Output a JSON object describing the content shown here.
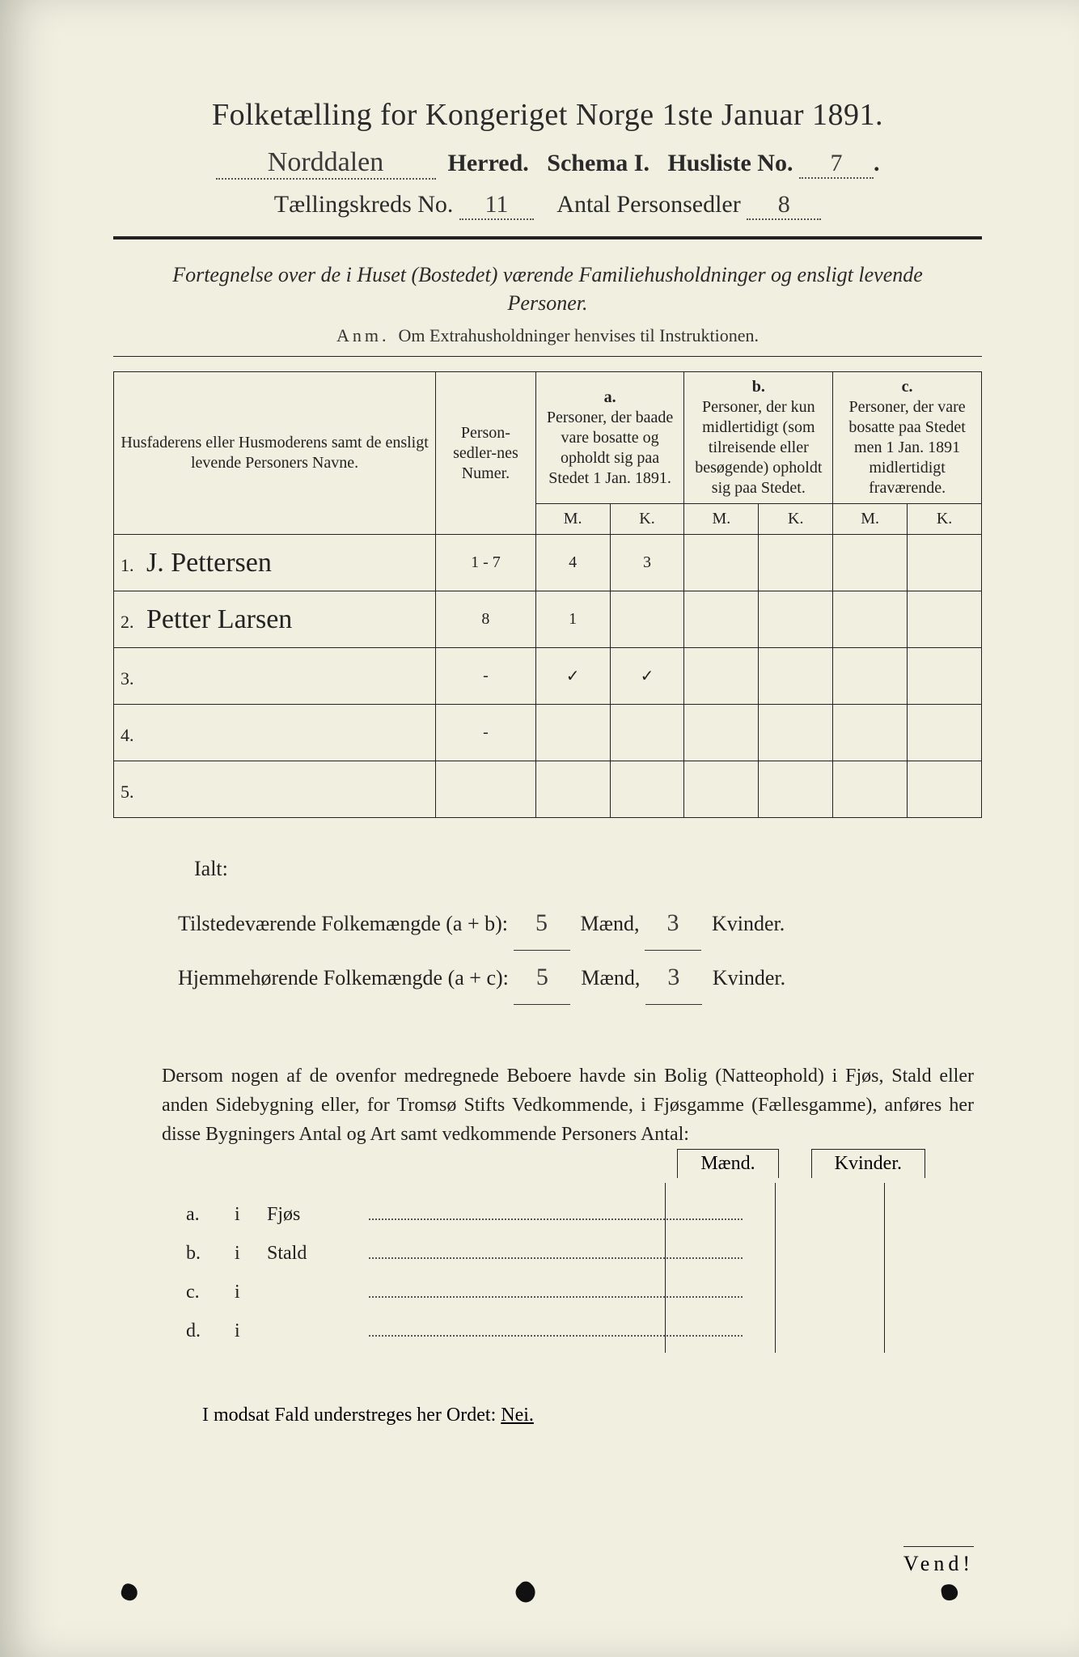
{
  "header": {
    "title": "Folketælling for Kongeriget Norge 1ste Januar 1891.",
    "herred_value": "Norddalen",
    "herred_label": "Herred.",
    "schema_label": "Schema I.",
    "husliste_label": "Husliste No.",
    "husliste_value": "7",
    "kreds_label": "Tællingskreds No.",
    "kreds_value": "11",
    "antal_label": "Antal Personsedler",
    "antal_value": "8"
  },
  "intro": {
    "line": "Fortegnelse over de i Huset (Bostedet) værende Familiehusholdninger og ensligt levende Personer.",
    "anm_label": "Anm.",
    "anm_text": "Om Extrahusholdninger henvises til Instruktionen."
  },
  "table": {
    "col_name": "Husfaderens eller Husmoderens samt de ensligt levende Personers Navne.",
    "col_num": "Person-sedler-nes Numer.",
    "col_a_label": "a.",
    "col_a": "Personer, der baade vare bosatte og opholdt sig paa Stedet 1 Jan. 1891.",
    "col_b_label": "b.",
    "col_b": "Personer, der kun midlertidigt (som tilreisende eller besøgende) opholdt sig paa Stedet.",
    "col_c_label": "c.",
    "col_c": "Personer, der vare bosatte paa Stedet men 1 Jan. 1891 midlertidigt fraværende.",
    "M": "M.",
    "K": "K.",
    "rows": [
      {
        "n": "1.",
        "name": "J. Pettersen",
        "num": "1 - 7",
        "aM": "4",
        "aK": "3",
        "bM": "",
        "bK": "",
        "cM": "",
        "cK": ""
      },
      {
        "n": "2.",
        "name": "Petter Larsen",
        "num": "8",
        "aM": "1",
        "aK": "",
        "bM": "",
        "bK": "",
        "cM": "",
        "cK": ""
      },
      {
        "n": "3.",
        "name": "",
        "num": "-",
        "aM": "✓",
        "aK": "✓",
        "bM": "",
        "bK": "",
        "cM": "",
        "cK": ""
      },
      {
        "n": "4.",
        "name": "",
        "num": "-",
        "aM": "",
        "aK": "",
        "bM": "",
        "bK": "",
        "cM": "",
        "cK": ""
      },
      {
        "n": "5.",
        "name": "",
        "num": "",
        "aM": "",
        "aK": "",
        "bM": "",
        "bK": "",
        "cM": "",
        "cK": ""
      }
    ]
  },
  "totals": {
    "ialt": "Ialt:",
    "line1_label": "Tilstedeværende Folkemængde (a + b):",
    "line2_label": "Hjemmehørende Folkemængde (a + c):",
    "maend": "Mænd,",
    "kvinder": "Kvinder.",
    "v1m": "5",
    "v1k": "3",
    "v2m": "5",
    "v2k": "3"
  },
  "note": "Dersom nogen af de ovenfor medregnede Beboere havde sin Bolig (Natteophold) i Fjøs, Stald eller anden Sidebygning eller, for Tromsø Stifts Vedkommende, i Fjøsgamme (Fællesgamme), anføres her disse Bygningers Antal og Art samt vedkommende Personers Antal:",
  "side": {
    "maend": "Mænd.",
    "kvinder": "Kvinder.",
    "rows": [
      {
        "a": "a.",
        "i": "i",
        "cat": "Fjøs"
      },
      {
        "a": "b.",
        "i": "i",
        "cat": "Stald"
      },
      {
        "a": "c.",
        "i": "i",
        "cat": ""
      },
      {
        "a": "d.",
        "i": "i",
        "cat": ""
      }
    ]
  },
  "nei": {
    "pre": "I modsat Fald understreges her Ordet: ",
    "word": "Nei."
  },
  "vend": "Vend!"
}
